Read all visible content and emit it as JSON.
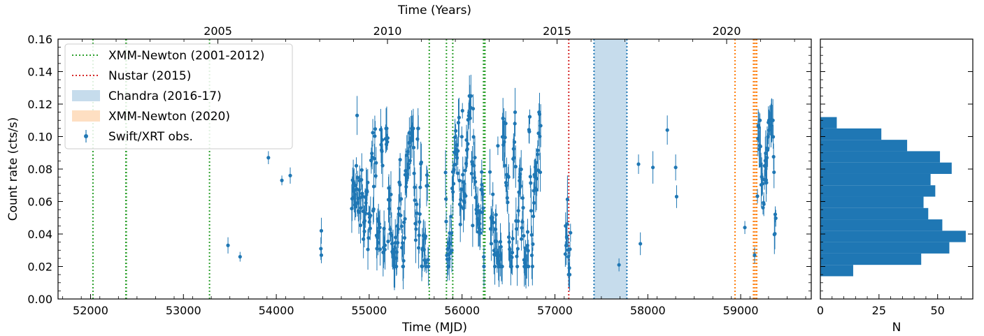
{
  "chart_data": [
    {
      "type": "scatter",
      "title": "",
      "xlabel": "Time (MJD)",
      "ylabel": "Count rate (cts/s)",
      "top_xlabel": "Time (Years)",
      "xlim": [
        51650,
        59760
      ],
      "ylim": [
        0,
        0.16
      ],
      "x_ticks": [
        52000,
        53000,
        54000,
        55000,
        56000,
        57000,
        58000,
        59000
      ],
      "y_ticks": [
        0.0,
        0.02,
        0.04,
        0.06,
        0.08,
        0.1,
        0.12,
        0.14,
        0.16
      ],
      "top_ticks": [
        {
          "label": "2005",
          "mjd": 53371
        },
        {
          "label": "2010",
          "mjd": 55197
        },
        {
          "label": "2015",
          "mjd": 57023
        },
        {
          "label": "2020",
          "mjd": 58849
        }
      ],
      "grid": false,
      "legend_position": "top-left",
      "legend": [
        {
          "label": "XMM-Newton (2001-2012)",
          "kind": "dotted-line",
          "color": "#2ca02c"
        },
        {
          "label": "Nustar (2015)",
          "kind": "dotted-line",
          "color": "#d62728"
        },
        {
          "label": "Chandra (2016-17)",
          "kind": "patch",
          "color": "#c6dcec"
        },
        {
          "label": "XMM-Newton (2020)",
          "kind": "patch",
          "color": "#fedfc2"
        },
        {
          "label": "Swift/XRT obs.",
          "kind": "errorbar-marker",
          "color": "#1f77b4"
        }
      ],
      "xmm_2001_2012_mjd": [
        52026,
        52380,
        52385,
        53281,
        55647,
        55832,
        55900,
        56231,
        56236,
        56242,
        56247
      ],
      "nustar_2015_mjd": [
        57149
      ],
      "chandra_2016_17_span_mjd": [
        57421,
        57775
      ],
      "xmm_2020_mjd": [
        58939,
        59138,
        59155,
        59173
      ],
      "colors": {
        "swift": "#1f77b4",
        "xmm_2001_2012": "#2ca02c",
        "nustar": "#d62728",
        "chandra": "#c6dcec",
        "chandra_edge": "#1f77b4",
        "xmm_2020": "#ff7f0e",
        "xmm_2020_fill": "#fedfc2"
      },
      "isolated_points": [
        {
          "x": 53480,
          "y": 0.033,
          "err": 0.005
        },
        {
          "x": 53610,
          "y": 0.026,
          "err": 0.003
        },
        {
          "x": 53915,
          "y": 0.087,
          "err": 0.004
        },
        {
          "x": 54060,
          "y": 0.073,
          "err": 0.003
        },
        {
          "x": 54150,
          "y": 0.076,
          "err": 0.005
        },
        {
          "x": 54480,
          "y": 0.031,
          "err": 0.007
        },
        {
          "x": 54485,
          "y": 0.042,
          "err": 0.008
        },
        {
          "x": 54485,
          "y": 0.027,
          "err": 0.005
        },
        {
          "x": 54870,
          "y": 0.113,
          "err": 0.012
        },
        {
          "x": 57690,
          "y": 0.021,
          "err": 0.004
        },
        {
          "x": 57900,
          "y": 0.083,
          "err": 0.006
        },
        {
          "x": 57920,
          "y": 0.034,
          "err": 0.007
        },
        {
          "x": 58055,
          "y": 0.081,
          "err": 0.01
        },
        {
          "x": 58210,
          "y": 0.104,
          "err": 0.009
        },
        {
          "x": 58300,
          "y": 0.081,
          "err": 0.008
        },
        {
          "x": 58310,
          "y": 0.063,
          "err": 0.007
        },
        {
          "x": 59045,
          "y": 0.044,
          "err": 0.004
        },
        {
          "x": 59150,
          "y": 0.027,
          "err": 0.005
        }
      ],
      "dense_segments": [
        {
          "x0": 54810,
          "x1": 55640,
          "ymin": 0.02,
          "ymax": 0.105
        },
        {
          "x0": 55820,
          "x1": 56240,
          "ymin": 0.02,
          "ymax": 0.125
        },
        {
          "x0": 56300,
          "x1": 56850,
          "ymin": 0.02,
          "ymax": 0.115
        },
        {
          "x0": 57110,
          "x1": 57170,
          "ymin": 0.015,
          "ymax": 0.075
        },
        {
          "x0": 59180,
          "x1": 59380,
          "ymin": 0.03,
          "ymax": 0.11
        }
      ]
    },
    {
      "type": "bar",
      "orientation": "horizontal",
      "title": "",
      "xlabel": "N",
      "ylabel": "",
      "xlim": [
        0,
        65
      ],
      "ylim": [
        0,
        0.16
      ],
      "x_ticks": [
        0,
        25,
        50
      ],
      "bins": [
        {
          "y0": 0.014,
          "y1": 0.021,
          "count": 14
        },
        {
          "y0": 0.021,
          "y1": 0.028,
          "count": 43
        },
        {
          "y0": 0.028,
          "y1": 0.035,
          "count": 55
        },
        {
          "y0": 0.035,
          "y1": 0.042,
          "count": 62
        },
        {
          "y0": 0.042,
          "y1": 0.049,
          "count": 52
        },
        {
          "y0": 0.049,
          "y1": 0.056,
          "count": 46
        },
        {
          "y0": 0.056,
          "y1": 0.063,
          "count": 44
        },
        {
          "y0": 0.063,
          "y1": 0.07,
          "count": 49
        },
        {
          "y0": 0.07,
          "y1": 0.077,
          "count": 47
        },
        {
          "y0": 0.077,
          "y1": 0.084,
          "count": 56
        },
        {
          "y0": 0.084,
          "y1": 0.091,
          "count": 51
        },
        {
          "y0": 0.091,
          "y1": 0.098,
          "count": 37
        },
        {
          "y0": 0.098,
          "y1": 0.105,
          "count": 26
        },
        {
          "y0": 0.105,
          "y1": 0.112,
          "count": 7
        }
      ],
      "color": "#1f77b4"
    }
  ]
}
